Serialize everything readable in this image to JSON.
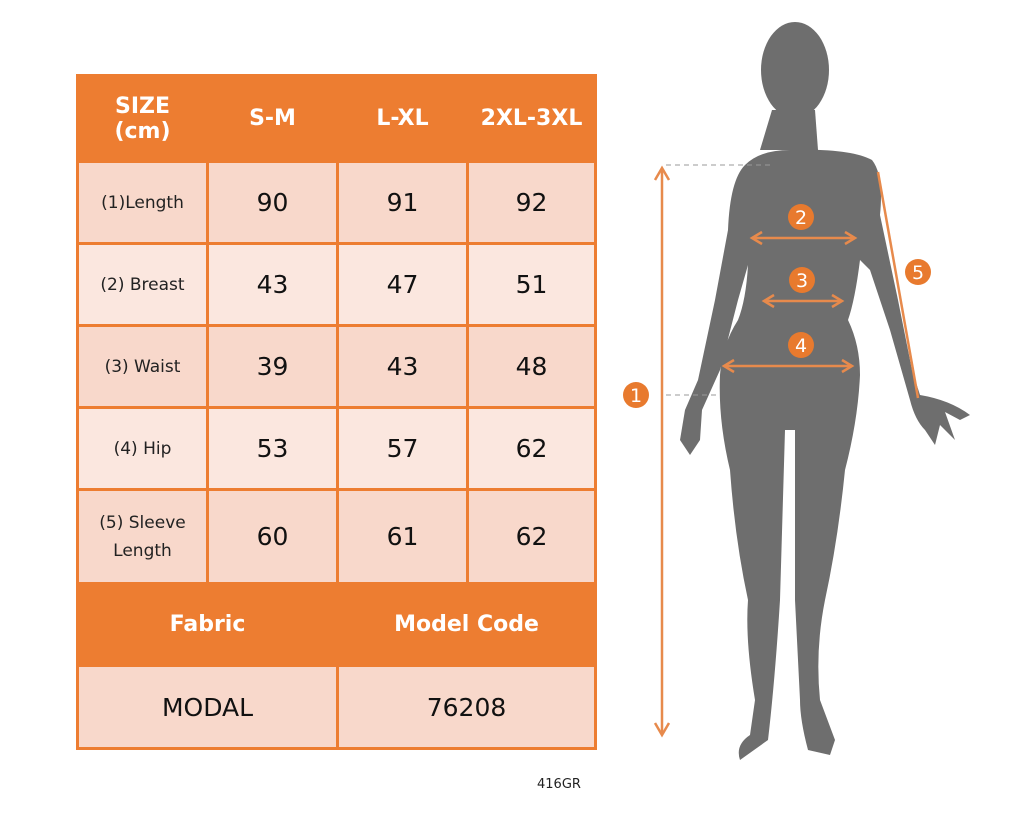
{
  "table": {
    "header": [
      "SIZE\n(cm)",
      "S-M",
      "L-XL",
      "2XL-3XL"
    ],
    "header_size_line1": "SIZE",
    "header_size_line2": "(cm)",
    "rows": [
      {
        "label": "(1)Length",
        "values": [
          "90",
          "91",
          "92"
        ]
      },
      {
        "label": "(2) Breast",
        "values": [
          "43",
          "47",
          "51"
        ]
      },
      {
        "label": "(3) Waist",
        "values": [
          "39",
          "43",
          "48"
        ]
      },
      {
        "label": "(4) Hip",
        "values": [
          "53",
          "57",
          "62"
        ]
      },
      {
        "label_line1": "(5) Sleeve",
        "label_line2": "Length",
        "values": [
          "60",
          "61",
          "62"
        ]
      }
    ],
    "fabric_label": "Fabric",
    "model_code_label": "Model Code",
    "fabric_value": "MODAL",
    "model_code_value": "76208"
  },
  "product_code": "416GR",
  "figure": {
    "markers": [
      "1",
      "2",
      "3",
      "4",
      "5"
    ],
    "accent_color": "#ed7d31",
    "silhouette_color": "#6e6e6e"
  },
  "colors": {
    "header": "#ed7d31",
    "row_dark": "#f8d8cb",
    "row_light": "#fbe7df"
  }
}
